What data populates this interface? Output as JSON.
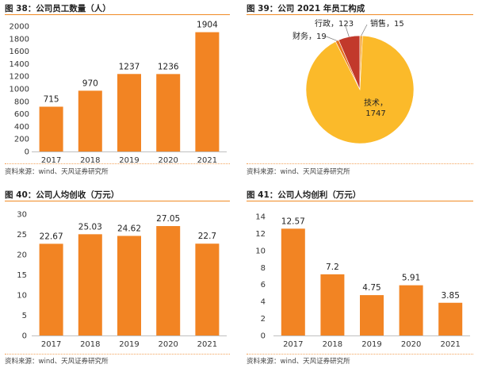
{
  "source_label": "资料来源：wind、天风证券研究所",
  "chart_data": [
    {
      "id": "fig38",
      "type": "bar",
      "title": "图 38：公司员工数量（人）",
      "categories": [
        "2017",
        "2018",
        "2019",
        "2020",
        "2021"
      ],
      "values": [
        715,
        970,
        1237,
        1236,
        1904
      ],
      "data_labels": [
        "715",
        "970",
        "1237",
        "1236",
        "1904"
      ],
      "ylim": [
        0,
        2000
      ],
      "yticks": [
        0,
        200,
        400,
        600,
        800,
        1000,
        1200,
        1400,
        1600,
        1800,
        2000
      ],
      "grid": false,
      "legend": "none",
      "color": "#f28423"
    },
    {
      "id": "fig39",
      "type": "pie",
      "title": "图 39：公司 2021 年员工构成",
      "slices": [
        {
          "name": "技术",
          "value": 1747,
          "label": "技术，\n1747",
          "color": "#fbba2a"
        },
        {
          "name": "财务",
          "value": 19,
          "label": "财务，19",
          "color": "#e8731d"
        },
        {
          "name": "行政",
          "value": 123,
          "label": "行政，123",
          "color": "#c2392b"
        },
        {
          "name": "销售",
          "value": 15,
          "label": "销售，15",
          "color": "#f6a63a"
        }
      ]
    },
    {
      "id": "fig40",
      "type": "bar",
      "title": "图 40：公司人均创收（万元）",
      "categories": [
        "2017",
        "2018",
        "2019",
        "2020",
        "2021"
      ],
      "values": [
        22.67,
        25.03,
        24.62,
        27.05,
        22.7
      ],
      "data_labels": [
        "22.67",
        "25.03",
        "24.62",
        "27.05",
        "22.7"
      ],
      "ylim": [
        0,
        30
      ],
      "yticks": [
        0,
        5,
        10,
        15,
        20,
        25,
        30
      ],
      "grid": false,
      "legend": "none",
      "color": "#f28423"
    },
    {
      "id": "fig41",
      "type": "bar",
      "title": "图 41：公司人均创利（万元）",
      "categories": [
        "2017",
        "2018",
        "2019",
        "2020",
        "2021"
      ],
      "values": [
        12.57,
        7.2,
        4.75,
        5.91,
        3.85
      ],
      "data_labels": [
        "12.57",
        "7.2",
        "4.75",
        "5.91",
        "3.85"
      ],
      "ylim": [
        0,
        14
      ],
      "yticks": [
        0,
        2,
        4,
        6,
        8,
        10,
        12,
        14
      ],
      "grid": false,
      "legend": "none",
      "color": "#f28423"
    }
  ]
}
